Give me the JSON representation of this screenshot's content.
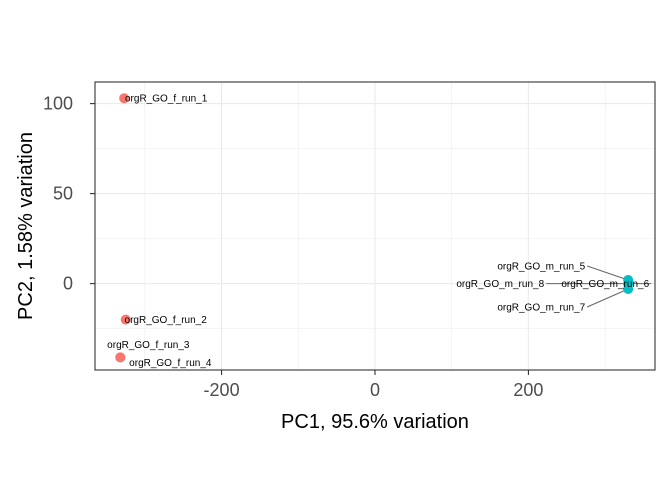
{
  "chart_data": {
    "type": "scatter",
    "title": "",
    "xlabel": "PC1, 95.6% variation",
    "ylabel": "PC2, 1.58% variation",
    "xlim": [
      -365,
      365
    ],
    "ylim": [
      -48,
      112
    ],
    "x_ticks": [
      -200,
      0,
      200
    ],
    "y_ticks": [
      0,
      50,
      100
    ],
    "grid": true,
    "legend": "none",
    "colors": {
      "f": "#F8766D",
      "m": "#00BFC4",
      "leader": "#666666"
    },
    "points": [
      {
        "label": "orgR_GO_f_run_1",
        "group": "f",
        "x": -327,
        "y": 103
      },
      {
        "label": "orgR_GO_f_run_2",
        "group": "f",
        "x": -325,
        "y": -20
      },
      {
        "label": "orgR_GO_f_run_3",
        "group": "f",
        "x": -332,
        "y": -41
      },
      {
        "label": "orgR_GO_f_run_4",
        "group": "f",
        "x": -332,
        "y": -41
      },
      {
        "label": "orgR_GO_m_run_5",
        "group": "m",
        "x": 330,
        "y": 2
      },
      {
        "label": "orgR_GO_m_run_6",
        "group": "m",
        "x": 330,
        "y": 0
      },
      {
        "label": "orgR_GO_m_run_7",
        "group": "m",
        "x": 330,
        "y": -3
      },
      {
        "label": "orgR_GO_m_run_8",
        "group": "m",
        "x": 330,
        "y": 0
      }
    ]
  }
}
